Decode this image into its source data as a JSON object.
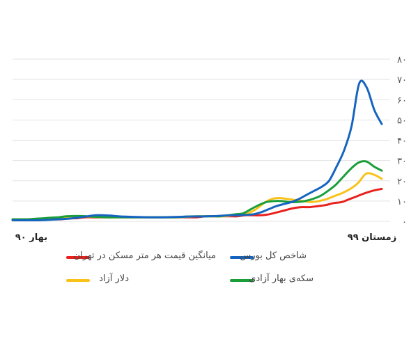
{
  "chart_data": {
    "type": "line",
    "title": "",
    "xlabel": "",
    "ylabel": "",
    "ylim": [
      0,
      80
    ],
    "yticks": [
      "۰",
      "۱۰",
      "۲۰",
      "۳۰",
      "۴۰",
      "۵۰",
      "۶۰",
      "۷۰",
      "۸۰"
    ],
    "xticks": {
      "start": "بهار ۹۰",
      "end": "زمستان ۹۹"
    },
    "grid": true,
    "legend_placement": "bottom",
    "series": [
      {
        "name": "میانگین قیمت هر متر مسکن در تهران",
        "color": "#e8211d",
        "values": [
          1,
          1,
          1,
          1,
          1,
          1,
          1,
          1.5,
          1.5,
          2,
          2,
          2,
          2,
          2,
          2,
          2,
          2,
          2,
          2,
          2,
          2,
          2,
          2,
          2,
          2.5,
          2.5,
          2.5,
          2.5,
          2.5,
          3,
          3,
          3,
          3.5,
          4.5,
          5.5,
          6.5,
          7,
          7,
          7.5,
          8,
          9,
          9.5,
          11,
          12.5,
          14,
          15.2,
          16
        ]
      },
      {
        "name": "شاخص کل بورس",
        "color": "#1565c0",
        "values": [
          0.5,
          0.5,
          0.5,
          0.5,
          0.6,
          0.8,
          1,
          1.2,
          1.5,
          2,
          2.5,
          3,
          3,
          2.8,
          2.5,
          2.3,
          2.2,
          2.1,
          2,
          2,
          2,
          2.1,
          2.2,
          2.3,
          2.4,
          2.4,
          2.5,
          2.6,
          2.8,
          3,
          3,
          3.2,
          3.5,
          4.5,
          6,
          7.5,
          8.5,
          9.5,
          11,
          13,
          15,
          17,
          20,
          27,
          35,
          47,
          68,
          66,
          55,
          48
        ]
      },
      {
        "name": "دلار آزاد",
        "color": "#f9c21b",
        "values": [
          1,
          1,
          1,
          1.2,
          1.3,
          1.5,
          1.7,
          2,
          2.3,
          2.4,
          2.3,
          2.2,
          2,
          2,
          2,
          2,
          2,
          2,
          2,
          2,
          2,
          2,
          2.2,
          2.4,
          2.5,
          2.5,
          2.5,
          2.5,
          3,
          3.5,
          4,
          6,
          9,
          11,
          11.5,
          11,
          10.5,
          10,
          9.5,
          10,
          11,
          12.5,
          14,
          16,
          19,
          23.5,
          23,
          21
        ]
      },
      {
        "name": "سکه‌ی بهار آزادی",
        "color": "#1b9e3a",
        "values": [
          1,
          1,
          1,
          1.3,
          1.5,
          1.8,
          2,
          2.5,
          2.6,
          2.6,
          2.4,
          2.2,
          2,
          2,
          2,
          2,
          2,
          2,
          2,
          2,
          2,
          2,
          2.2,
          2.4,
          2.5,
          2.5,
          2.5,
          2.5,
          3,
          3.5,
          4,
          6,
          8,
          9.5,
          10,
          10,
          9.5,
          9.5,
          10,
          11,
          12.5,
          15,
          18,
          22,
          26,
          29,
          29.5,
          27,
          25
        ]
      }
    ]
  },
  "legend": {
    "items": [
      {
        "label": "میانگین قیمت هر متر مسکن در تهران",
        "color": "#e8211d"
      },
      {
        "label": "شاخص کل بورس",
        "color": "#1565c0"
      },
      {
        "label": "دلار آزاد",
        "color": "#f9c21b"
      },
      {
        "label": "سکه‌ی بهار آزادی",
        "color": "#1b9e3a"
      }
    ]
  }
}
